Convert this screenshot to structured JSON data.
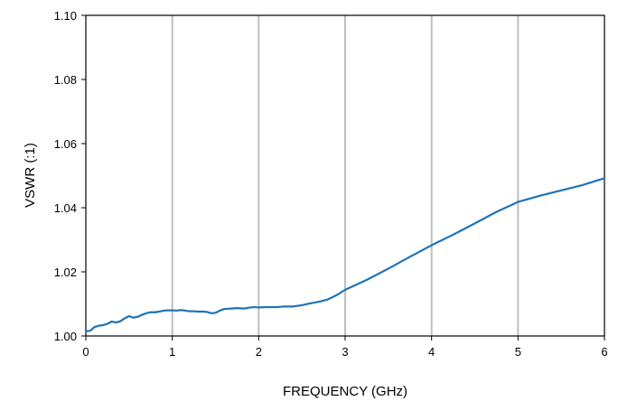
{
  "chart_data": {
    "type": "line",
    "title": "",
    "xlabel": "FREQUENCY  (GHz)",
    "ylabel": "VSWR (:1)",
    "xlim": [
      0,
      6
    ],
    "ylim": [
      1.0,
      1.1
    ],
    "x_ticks": [
      0,
      1,
      2,
      3,
      4,
      5,
      6
    ],
    "x_tick_labels": [
      "0",
      "1",
      "2",
      "3",
      "4",
      "5",
      "6"
    ],
    "y_ticks": [
      1.0,
      1.02,
      1.04,
      1.06,
      1.08,
      1.1
    ],
    "y_tick_labels": [
      "1.00",
      "1.02",
      "1.04",
      "1.06",
      "1.08",
      "1.10"
    ],
    "grid": {
      "vertical": true,
      "horizontal": false
    },
    "legend": "none",
    "colors": {
      "series": "#1f73b7",
      "grid": "#bfbfbf",
      "axis": "#000000"
    },
    "series": [
      {
        "x": [
          0.0,
          0.05,
          0.1,
          0.15,
          0.2,
          0.25,
          0.3,
          0.35,
          0.4,
          0.45,
          0.5,
          0.55,
          0.6,
          0.65,
          0.7,
          0.75,
          0.8,
          0.85,
          0.9,
          0.95,
          1.0,
          1.05,
          1.1,
          1.15,
          1.2,
          1.25,
          1.3,
          1.35,
          1.4,
          1.45,
          1.5,
          1.55,
          1.6,
          1.65,
          1.7,
          1.75,
          1.8,
          1.85,
          1.9,
          1.95,
          2.0,
          2.1,
          2.2,
          2.3,
          2.4,
          2.5,
          2.6,
          2.7,
          2.8,
          2.9,
          3.0,
          3.25,
          3.5,
          3.75,
          4.0,
          4.25,
          4.5,
          4.75,
          5.0,
          5.25,
          5.5,
          5.75,
          6.0
        ],
        "values": [
          1.0015,
          1.0016,
          1.0028,
          1.0032,
          1.0034,
          1.0038,
          1.0045,
          1.0042,
          1.0046,
          1.0055,
          1.0062,
          1.0057,
          1.006,
          1.0066,
          1.0071,
          1.0074,
          1.0074,
          1.0076,
          1.0079,
          1.008,
          1.008,
          1.0079,
          1.0081,
          1.0079,
          1.0077,
          1.0077,
          1.0076,
          1.0076,
          1.0075,
          1.0071,
          1.0072,
          1.0079,
          1.0084,
          1.0085,
          1.0086,
          1.0087,
          1.0086,
          1.0086,
          1.0089,
          1.009,
          1.0089,
          1.009,
          1.009,
          1.0092,
          1.0092,
          1.0096,
          1.0102,
          1.0107,
          1.0114,
          1.0127,
          1.0144,
          1.0175,
          1.021,
          1.0247,
          1.0283,
          1.0316,
          1.0351,
          1.0387,
          1.0418,
          1.0437,
          1.0454,
          1.0471,
          1.0492
        ]
      }
    ]
  }
}
